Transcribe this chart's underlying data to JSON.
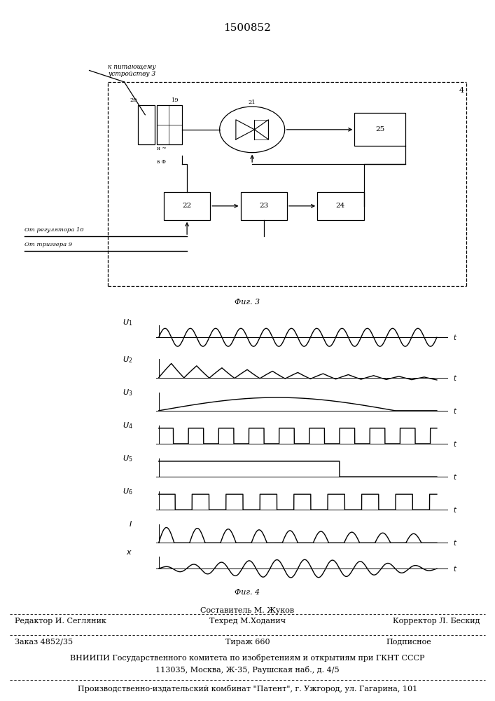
{
  "patent_number": "1500852",
  "fig3_label": "Фиг. 3",
  "fig4_label": "Фиг. 4",
  "bg_color": "#ffffff",
  "line_color": "#000000",
  "signal_labels": [
    "$U_1$",
    "$U_2$",
    "$U_3$",
    "$U_4$",
    "$U_5$",
    "$U_6$",
    "$I$",
    "$x$"
  ],
  "footer": {
    "sostavitel": "Составитель М. Жуков",
    "redaktor": "Редактор И. Сегляник",
    "tehred": "Техред М.Ходанич",
    "korrektor": "Корректор Л. Бескид",
    "zakaz": "Заказ 4852/35",
    "tirazh": "Тираж 660",
    "podpisnoe": "Подписное",
    "vniipи_line1": "ВНИИПИ Государственного комитета по изобретениям и открытиям при ГКНТ СССР",
    "vniipи_line2": "113035, Москва, Ж-35, Раушская наб., д. 4/5",
    "kombinat": "Производственно-издательский комбинат \"Патент\", г. Ужгород, ул. Гагарина, 101"
  }
}
